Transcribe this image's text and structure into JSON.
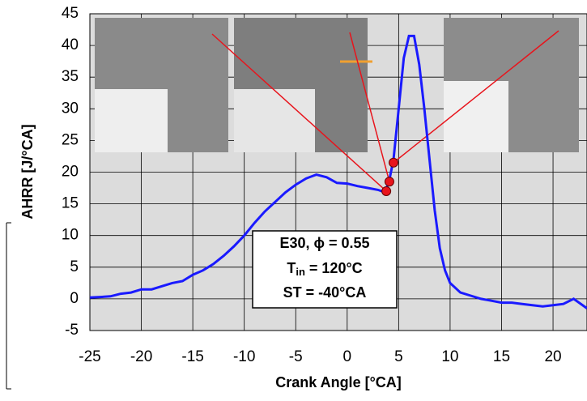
{
  "chart_data": {
    "type": "line",
    "x_label": "Crank Angle [°CA]",
    "y_label": "AHRR [J/°CA]",
    "xlim": [
      -25,
      23.3
    ],
    "ylim": [
      -5,
      45
    ],
    "xticks": [
      -25,
      -20,
      -15,
      -10,
      -5,
      0,
      5,
      10,
      15,
      20
    ],
    "yticks": [
      -5,
      0,
      5,
      10,
      15,
      20,
      25,
      30,
      35,
      40,
      45
    ],
    "grid": true,
    "series": [
      {
        "color": "#1a1aff",
        "x": [
          -25,
          -24,
          -23,
          -22,
          -21,
          -20,
          -19,
          -18,
          -17,
          -16,
          -15,
          -14,
          -13,
          -12,
          -11,
          -10,
          -9,
          -8,
          -7,
          -6,
          -5,
          -4,
          -3,
          -2,
          -1,
          0,
          1,
          2,
          3,
          3.5,
          4,
          4.5,
          5,
          5.5,
          6,
          6.5,
          7,
          7.5,
          8,
          8.5,
          9,
          9.5,
          10,
          11,
          12,
          13,
          14,
          15,
          16,
          17,
          18,
          19,
          20,
          21,
          22,
          23.3
        ],
        "values": [
          0.2,
          0.3,
          0.4,
          0.8,
          1.0,
          1.5,
          1.5,
          2.0,
          2.5,
          2.8,
          3.8,
          4.5,
          5.5,
          6.8,
          8.3,
          10.0,
          12.0,
          13.8,
          15.3,
          16.8,
          18.0,
          19.0,
          19.6,
          19.2,
          18.3,
          18.2,
          17.8,
          17.5,
          17.2,
          16.9,
          18.0,
          22.0,
          30.0,
          38.0,
          41.5,
          41.5,
          37.0,
          30.0,
          22.0,
          14.0,
          8.0,
          4.5,
          2.5,
          1.0,
          0.5,
          0.0,
          -0.3,
          -0.6,
          -0.6,
          -0.8,
          -1.0,
          -1.2,
          -1.0,
          -0.8,
          0.0,
          -1.5
        ]
      }
    ],
    "markers": {
      "color": "#e8141c",
      "x": [
        3.8,
        4.1,
        4.5
      ],
      "values": [
        17.0,
        18.5,
        21.5
      ]
    },
    "annotation": {
      "line1": "E30, ϕ = 0.55",
      "line2": {
        "text": "T",
        "sub": "in",
        "rest": " = 120°C"
      },
      "line3": "ST = -40°CA"
    }
  }
}
